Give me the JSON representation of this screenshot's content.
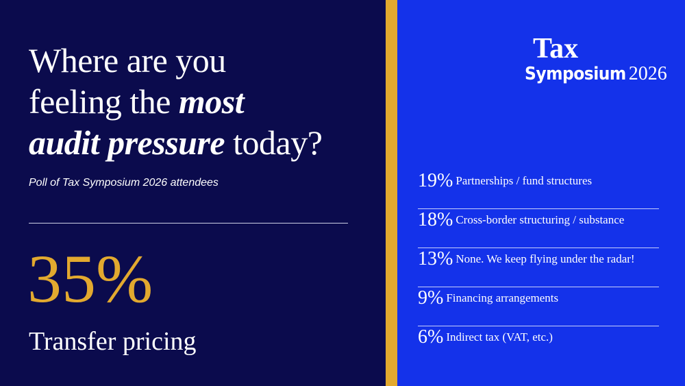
{
  "headline": {
    "lines": [
      [
        "Where are you"
      ],
      [
        "feeling the",
        "most"
      ],
      [
        "audit pressure",
        "today?"
      ]
    ]
  },
  "subtitle": "Poll of Tax Symposium 2026 attendees",
  "top_result": {
    "percent": "35%",
    "label": "Transfer pricing"
  },
  "logo": {
    "word1": "Tax",
    "word2": "Symposium",
    "year": "2026"
  },
  "results": [
    {
      "percent": "19%",
      "label": "Partnerships / fund structures"
    },
    {
      "percent": "18%",
      "label": "Cross-border structuring / substance"
    },
    {
      "percent": "13%",
      "label": "None. We keep flying under the radar!"
    },
    {
      "percent": "9%",
      "label": "Financing arrangements"
    },
    {
      "percent": "6%",
      "label": "Indirect tax (VAT, etc.)"
    }
  ]
}
